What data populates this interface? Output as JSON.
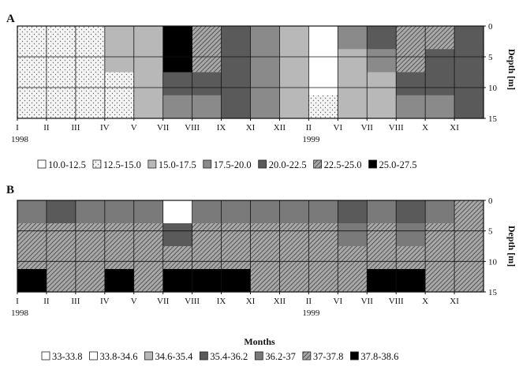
{
  "chart_data": [
    {
      "type": "heatmap",
      "panel": "A",
      "months": [
        "I",
        "II",
        "III",
        "IV",
        "V",
        "VII",
        "VIII",
        "IX",
        "XI",
        "XII",
        "II",
        "VI",
        "VII",
        "VIII",
        "X",
        "XI"
      ],
      "years": [
        {
          "label": "1998",
          "at": 0
        },
        {
          "label": "1999",
          "at": 10
        }
      ],
      "ylabel": "Depth [m]",
      "yticks": [
        0,
        5,
        10,
        15
      ],
      "ylim": [
        0,
        15
      ],
      "legend": [
        "10.0-12.5",
        "12.5-15.0",
        "15.0-17.5",
        "17.5-20.0",
        "20.0-22.5",
        "22.5-25.0",
        "25.0-27.5"
      ],
      "class_colors": [
        "#ffffff",
        "#ececec",
        "#b8b8b8",
        "#8a8a8a",
        "#5a5a5a",
        "#9a9a9a",
        "#000000"
      ],
      "class_hatched": [
        false,
        true,
        false,
        false,
        false,
        true,
        false
      ],
      "depth_profiles": [
        [
          1,
          1,
          1,
          1
        ],
        [
          1,
          1,
          1,
          1
        ],
        [
          1,
          1,
          1,
          1
        ],
        [
          2,
          2,
          1,
          1
        ],
        [
          2,
          2,
          2,
          2
        ],
        [
          6,
          6,
          4,
          3
        ],
        [
          5,
          5,
          4,
          3
        ],
        [
          4,
          4,
          4,
          4
        ],
        [
          3,
          3,
          3,
          3
        ],
        [
          2,
          2,
          2,
          2
        ],
        [
          0,
          0,
          0,
          1
        ],
        [
          3,
          2,
          2,
          2
        ],
        [
          4,
          3,
          2,
          2
        ],
        [
          5,
          5,
          4,
          3
        ],
        [
          5,
          4,
          4,
          3
        ],
        [
          4,
          4,
          4,
          4
        ]
      ]
    },
    {
      "type": "heatmap",
      "panel": "B",
      "months": [
        "I",
        "II",
        "III",
        "IV",
        "V",
        "VII",
        "VIII",
        "IX",
        "XI",
        "XII",
        "II",
        "VI",
        "VII",
        "VIII",
        "X",
        "XI"
      ],
      "years": [
        {
          "label": "1998",
          "at": 0
        },
        {
          "label": "1999",
          "at": 10
        }
      ],
      "xlabel": "Months",
      "ylabel": "Depth [m]",
      "yticks": [
        0,
        5,
        10,
        15
      ],
      "ylim": [
        0,
        15
      ],
      "legend": [
        "33-33.8",
        "33.8-34.6",
        "34.6-35.4",
        "35.4-36.2",
        "36.2-37",
        "37-37.8",
        "37.8-38.6"
      ],
      "class_colors": [
        "#ffffff",
        "#ffffff",
        "#b8b8b8",
        "#5a5a5a",
        "#7a7a7a",
        "#9a9a9a",
        "#000000"
      ],
      "class_hatched": [
        false,
        false,
        false,
        false,
        false,
        true,
        false
      ],
      "depth_profiles": [
        [
          4,
          5,
          5,
          6
        ],
        [
          3,
          5,
          5,
          5
        ],
        [
          4,
          5,
          5,
          5
        ],
        [
          4,
          5,
          5,
          6
        ],
        [
          4,
          5,
          5,
          5
        ],
        [
          0,
          3,
          5,
          6
        ],
        [
          4,
          5,
          5,
          6
        ],
        [
          4,
          5,
          5,
          6
        ],
        [
          4,
          5,
          5,
          5
        ],
        [
          4,
          5,
          5,
          5
        ],
        [
          4,
          5,
          5,
          5
        ],
        [
          3,
          4,
          5,
          5
        ],
        [
          4,
          5,
          5,
          6
        ],
        [
          3,
          4,
          5,
          6
        ],
        [
          4,
          5,
          5,
          5
        ],
        [
          5,
          5,
          5,
          5
        ]
      ]
    }
  ]
}
